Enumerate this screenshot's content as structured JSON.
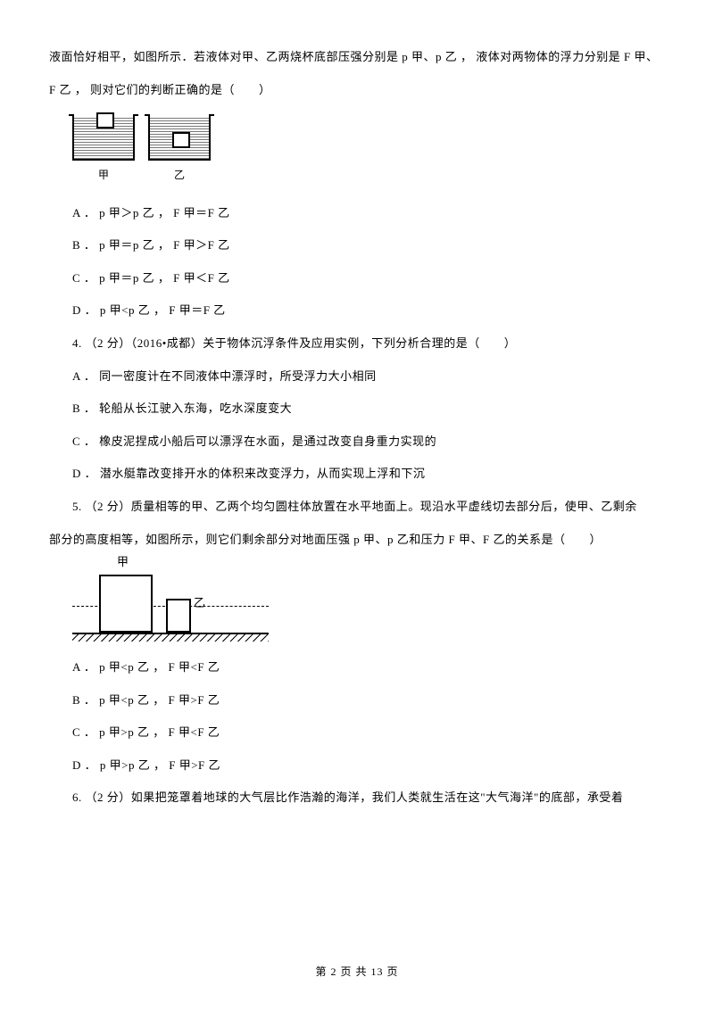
{
  "intro1": "液面恰好相平，如图所示．若液体对甲、乙两烧杯底部压强分别是 p 甲、p 乙 ，   液体对两物体的浮力分别是 F 甲、",
  "intro2": "F 乙 ，   则对它们的判断正确的是（　　）",
  "fig1": {
    "label_jia": "甲",
    "label_yi": "乙"
  },
  "q3": {
    "A": "A ． p 甲＞p 乙 ，   F 甲＝F 乙",
    "B": "B ． p 甲＝p 乙 ，   F 甲＞F 乙",
    "C": "C ． p 甲＝p 乙 ，   F 甲＜F 乙",
    "D": "D ． p 甲<p 乙 ，   F 甲＝F 乙"
  },
  "q4": {
    "stem": "4.   （2 分）（2016•成都）关于物体沉浮条件及应用实例，下列分析合理的是（　　）",
    "A": "A ． 同一密度计在不同液体中漂浮时，所受浮力大小相同",
    "B": "B ． 轮船从长江驶入东海，吃水深度变大",
    "C": "C ． 橡皮泥捏成小船后可以漂浮在水面，是通过改变自身重力实现的",
    "D": "D ． 潜水艇靠改变排开水的体积来改变浮力，从而实现上浮和下沉"
  },
  "q5": {
    "stem1": "5.    （2 分）质量相等的甲、乙两个均匀圆柱体放置在水平地面上。现沿水平虚线切去部分后，使甲、乙剩余",
    "stem2": "部分的高度相等，如图所示，则它们剩余部分对地面压强 p 甲、p 乙和压力 F 甲、F 乙的关系是（　　）",
    "label_jia": "甲",
    "label_yi": "乙",
    "A": "A ． p 甲<p 乙 ，   F 甲<F 乙",
    "B": "B ． p 甲<p 乙 ，   F 甲>F 乙",
    "C": "C ． p 甲>p 乙 ，   F 甲<F 乙",
    "D": "D ． p 甲>p 乙 ，   F 甲>F 乙"
  },
  "q6": {
    "stem": "6.    （2 分）如果把笼罩着地球的大气层比作浩瀚的海洋，我们人类就生活在这\"大气海洋\"的底部，承受着"
  },
  "footer": "第  2  页  共  13  页"
}
